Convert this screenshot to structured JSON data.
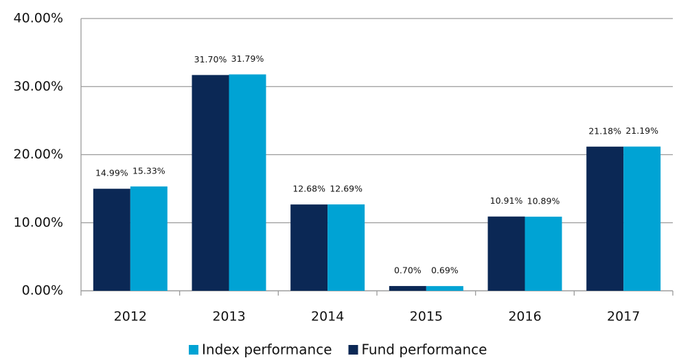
{
  "chart_data": {
    "type": "bar",
    "categories": [
      "2012",
      "2013",
      "2014",
      "2015",
      "2016",
      "2017"
    ],
    "series": [
      {
        "name": "Fund performance",
        "color": "#0b2855",
        "values": [
          14.99,
          31.7,
          12.68,
          0.7,
          10.91,
          21.18
        ],
        "value_labels": [
          "14.99%",
          "31.70%",
          "12.68%",
          "0.70%",
          "10.91%",
          "21.18%"
        ]
      },
      {
        "name": "Index performance",
        "color": "#00a3d4",
        "values": [
          15.33,
          31.79,
          12.69,
          0.69,
          10.89,
          21.19
        ],
        "value_labels": [
          "15.33%",
          "31.79%",
          "12.69%",
          "0.69%",
          "10.89%",
          "21.19%"
        ]
      }
    ],
    "ylim": [
      0,
      40
    ],
    "yticks": [
      {
        "value": 0,
        "label": "0.00%"
      },
      {
        "value": 10,
        "label": "10.00%"
      },
      {
        "value": 20,
        "label": "20.00%"
      },
      {
        "value": 30,
        "label": "30.00%"
      },
      {
        "value": 40,
        "label": "40.00%"
      }
    ],
    "grid": true
  }
}
